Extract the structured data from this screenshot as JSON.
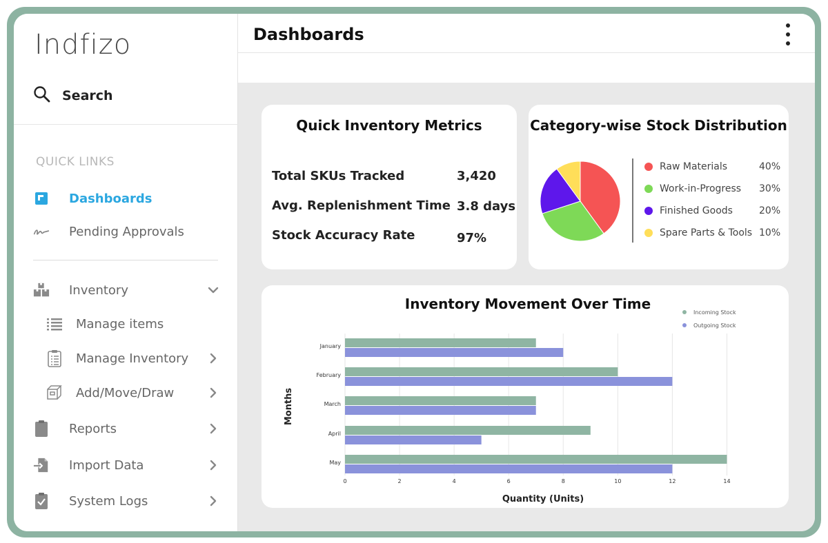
{
  "app": {
    "logo": "Indfizo"
  },
  "sidebar": {
    "search_label": "Search",
    "quick_links_title": "QUICK LINKS",
    "items": [
      {
        "label": "Dashboards",
        "icon": "dashboard-icon",
        "active": true
      },
      {
        "label": "Pending Approvals",
        "icon": "signature-icon"
      },
      {
        "label": "Inventory",
        "icon": "boxes-icon",
        "expanded": true,
        "children": [
          {
            "label": "Manage items",
            "icon": "list-icon"
          },
          {
            "label": "Manage Inventory",
            "icon": "clipboard-list-icon"
          },
          {
            "label": "Add/Move/Draw",
            "icon": "box-move-icon"
          }
        ]
      },
      {
        "label": "Reports",
        "icon": "clipboard-icon"
      },
      {
        "label": "Import Data",
        "icon": "import-icon"
      },
      {
        "label": "System Logs",
        "icon": "clipboard-check-icon"
      }
    ]
  },
  "header": {
    "title": "Dashboards",
    "menu_icon": "kebab-menu-icon"
  },
  "metrics": {
    "title": "Quick Inventory Metrics",
    "rows": [
      {
        "label": "Total SKUs Tracked",
        "value": "3,420"
      },
      {
        "label": "Avg. Replenishment Time",
        "value": "3.8 days"
      },
      {
        "label": "Stock Accuracy Rate",
        "value": "97%"
      }
    ]
  },
  "colors": {
    "accent": "#2ba7e0",
    "incoming": "#8fb5a3",
    "outgoing": "#8a92db",
    "frame": "#8db3a2"
  },
  "chart_data": [
    {
      "type": "pie",
      "title": "Category-wise Stock Distribution",
      "legend_position": "right",
      "slices": [
        {
          "label": "Raw Materials",
          "value": 40,
          "display": "40%",
          "color": "#f55454"
        },
        {
          "label": "Work-in-Progress",
          "value": 30,
          "display": "30%",
          "color": "#7ed957"
        },
        {
          "label": "Finished Goods",
          "value": 20,
          "display": "20%",
          "color": "#5e17eb"
        },
        {
          "label": "Spare Parts & Tools",
          "value": 10,
          "display": "10%",
          "color": "#ffde59"
        }
      ]
    },
    {
      "type": "bar",
      "orientation": "horizontal",
      "title": "Inventory Movement Over Time",
      "xlabel": "Quantity (Units)",
      "ylabel": "Months",
      "xlim": [
        0,
        15
      ],
      "xticks": [
        0,
        2,
        4,
        6,
        8,
        10,
        12,
        14
      ],
      "grid": true,
      "legend_position": "top-right",
      "categories": [
        "January",
        "February",
        "March",
        "April",
        "May"
      ],
      "series": [
        {
          "name": "Incoming Stock",
          "values": [
            7,
            10,
            7,
            9,
            14
          ],
          "color": "#8fb5a3"
        },
        {
          "name": "Outgoing Stock",
          "values": [
            8,
            12,
            7,
            5,
            12
          ],
          "color": "#8a92db"
        }
      ]
    }
  ]
}
